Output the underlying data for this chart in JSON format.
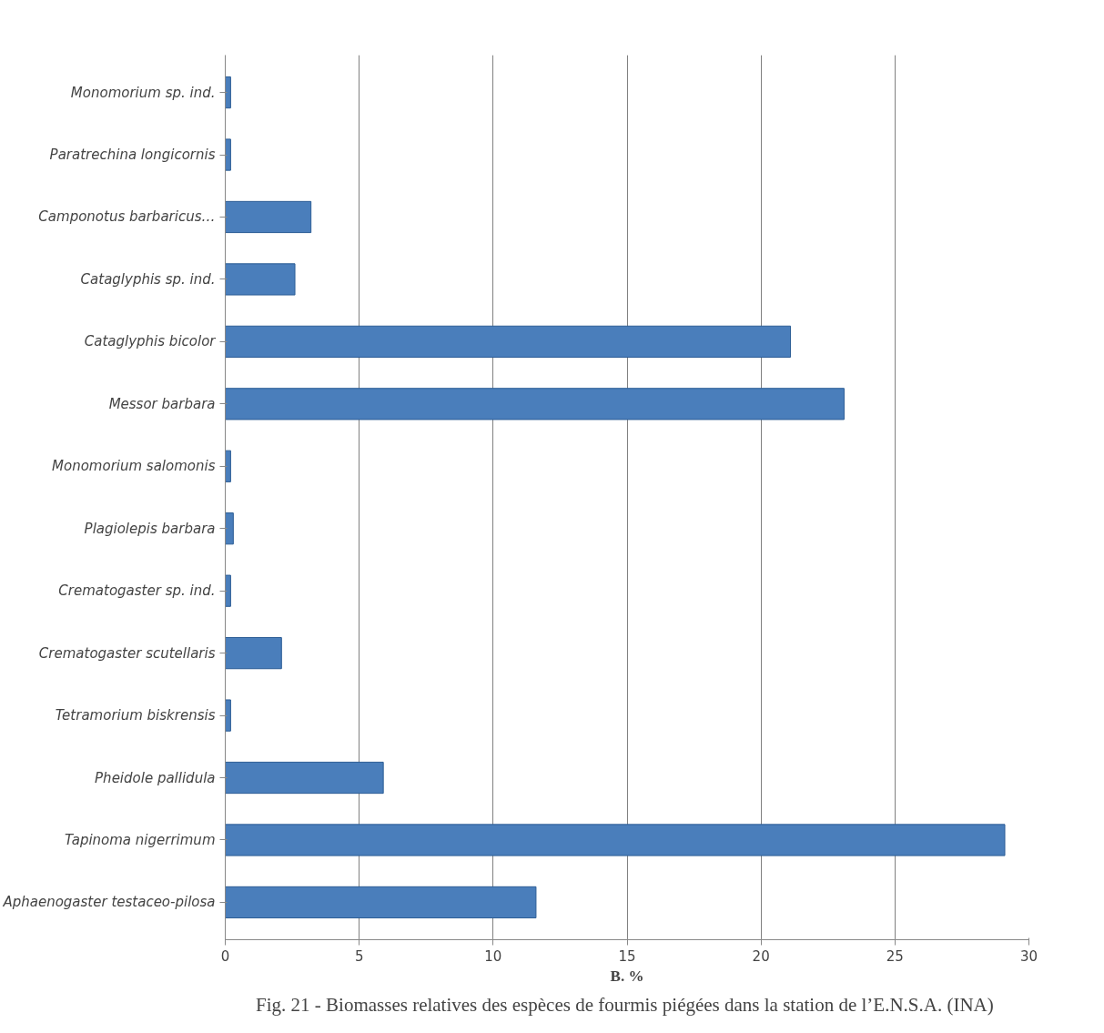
{
  "chart_data": {
    "type": "bar",
    "orientation": "horizontal",
    "title": "Fig. 21 - Biomasses  relatives des espèces de fourmis piégées dans la station de l’E.N.S.A. (INA)",
    "xlabel": "B. %",
    "categories": [
      "Monomorium sp. ind.",
      "Paratrechina longicornis",
      "Camponotus barbaricus…",
      "Cataglyphis sp. ind.",
      "Cataglyphis bicolor",
      "Messor barbara",
      "Monomorium salomonis",
      "Plagiolepis barbara",
      "Crematogaster sp. ind.",
      "Crematogaster scutellaris",
      "Tetramorium biskrensis",
      "Pheidole pallidula",
      "Tapinoma nigerrimum",
      "Aphaenogaster testaceo-pilosa"
    ],
    "values": [
      0.2,
      0.2,
      3.2,
      2.6,
      21.1,
      23.1,
      0.2,
      0.3,
      0.2,
      2.1,
      0.2,
      5.9,
      29.1,
      11.6
    ],
    "color": "#4a7ebb",
    "xlim": [
      0,
      30
    ],
    "xticks": [
      0,
      5,
      10,
      15,
      20,
      25,
      30
    ],
    "grid": "x"
  }
}
